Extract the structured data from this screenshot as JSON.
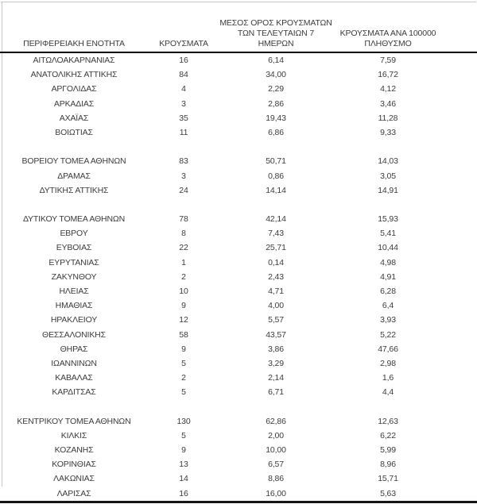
{
  "colors": {
    "background": "#ffffff",
    "text": "#3b3b3b",
    "header_rule": "#000000",
    "bottom_rule": "#161616",
    "frame_line": "#c7c7c7"
  },
  "table": {
    "columns": [
      {
        "text": "ΠΕΡΙΦΕΡΕΙΑΚΗ ΕΝΟΤΗΤΑ"
      },
      {
        "text": "ΚΡΟΥΣΜΑΤΑ"
      },
      {
        "text": "ΜΕΣΟΣ ΟΡΟΣ ΚΡΟΥΣΜΑΤΩΝ\nΤΩΝ ΤΕΛΕΥΤΑΙΩΝ 7 ΗΜΕΡΩΝ"
      },
      {
        "text": "ΚΡΟΥΣΜΑΤΑ ΑΝΑ 100000\nΠΛΗΘΥΣΜΟ"
      }
    ],
    "rows": [
      [
        "ΑΙΤΩΛΟΑΚΑΡΝΑΝΙΑΣ",
        "16",
        "6,14",
        "7,59"
      ],
      [
        "ΑΝΑΤΟΛΙΚΗΣ ΑΤΤΙΚΗΣ",
        "84",
        "34,00",
        "16,72"
      ],
      [
        "ΑΡΓΟΛΙΔΑΣ",
        "4",
        "2,29",
        "4,12"
      ],
      [
        "ΑΡΚΑΔΙΑΣ",
        "3",
        "2,86",
        "3,46"
      ],
      [
        "ΑΧΑΪΑΣ",
        "35",
        "19,43",
        "11,28"
      ],
      [
        "ΒΟΙΩΤΙΑΣ",
        "11",
        "6,86",
        "9,33"
      ],
      null,
      [
        "ΒΟΡΕΙΟΥ ΤΟΜΕΑ ΑΘΗΝΩΝ",
        "83",
        "50,71",
        "14,03"
      ],
      [
        "ΔΡΑΜΑΣ",
        "3",
        "0,86",
        "3,05"
      ],
      [
        "ΔΥΤΙΚΗΣ ΑΤΤΙΚΗΣ",
        "24",
        "14,14",
        "14,91"
      ],
      null,
      [
        "ΔΥΤΙΚΟΥ ΤΟΜΕΑ ΑΘΗΝΩΝ",
        "78",
        "42,14",
        "15,93"
      ],
      [
        "ΕΒΡΟΥ",
        "8",
        "7,43",
        "5,41"
      ],
      [
        "ΕΥΒΟΙΑΣ",
        "22",
        "25,71",
        "10,44"
      ],
      [
        "ΕΥΡΥΤΑΝΙΑΣ",
        "1",
        "0,14",
        "4,98"
      ],
      [
        "ΖΑΚΥΝΘΟΥ",
        "2",
        "2,43",
        "4,91"
      ],
      [
        "ΗΛΕΙΑΣ",
        "10",
        "4,71",
        "6,28"
      ],
      [
        "ΗΜΑΘΙΑΣ",
        "9",
        "4,00",
        "6,4"
      ],
      [
        "ΗΡΑΚΛΕΙΟΥ",
        "12",
        "5,57",
        "3,93"
      ],
      [
        "ΘΕΣΣΑΛΟΝΙΚΗΣ",
        "58",
        "43,57",
        "5,22"
      ],
      [
        "ΘΗΡΑΣ",
        "9",
        "3,86",
        "47,66"
      ],
      [
        "ΙΩΑΝΝΙΝΩΝ",
        "5",
        "3,29",
        "2,98"
      ],
      [
        "ΚΑΒΑΛΑΣ",
        "2",
        "2,14",
        "1,6"
      ],
      [
        "ΚΑΡΔΙΤΣΑΣ",
        "5",
        "6,71",
        "4,4"
      ],
      null,
      [
        "ΚΕΝΤΡΙΚΟΥ ΤΟΜΕΑ ΑΘΗΝΩΝ",
        "130",
        "62,86",
        "12,63"
      ],
      [
        "ΚΙΛΚΙΣ",
        "5",
        "2,00",
        "6,22"
      ],
      [
        "ΚΟΖΑΝΗΣ",
        "9",
        "10,00",
        "5,99"
      ],
      [
        "ΚΟΡΙΝΘΙΑΣ",
        "13",
        "6,57",
        "8,96"
      ],
      [
        "ΛΑΚΩΝΙΑΣ",
        "14",
        "8,86",
        "15,71"
      ],
      [
        "ΛΑΡΙΣΑΣ",
        "16",
        "16,00",
        "5,63"
      ]
    ],
    "cell_keys": [
      "region",
      "cases",
      "avg7",
      "per100k"
    ]
  }
}
